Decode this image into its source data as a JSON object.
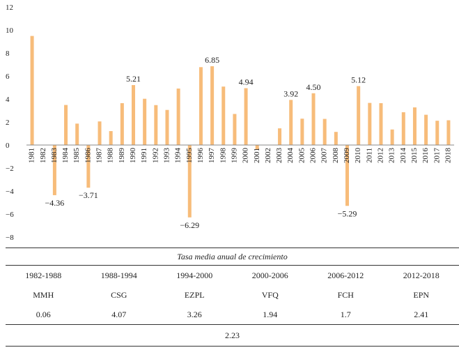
{
  "chart_data": {
    "type": "bar",
    "title": "",
    "xlabel": "",
    "ylabel": "",
    "bar_color": "#F7BC7A",
    "ylim": [
      -8,
      12
    ],
    "yticks": [
      12,
      10,
      8,
      6,
      4,
      2,
      0,
      -2,
      -4,
      -6,
      -8
    ],
    "ytick_labels": [
      "12",
      "10",
      "8",
      "6",
      "4",
      "2",
      "0",
      "−2",
      "−4",
      "−6",
      "−8"
    ],
    "categories": [
      "1981",
      "1982",
      "1983",
      "1984",
      "1985",
      "1986",
      "1987",
      "1988",
      "1989",
      "1990",
      "1991",
      "1992",
      "1993",
      "1994",
      "1995",
      "1996",
      "1997",
      "1998",
      "1999",
      "2000",
      "2001",
      "2002",
      "2003",
      "2004",
      "2005",
      "2006",
      "2007",
      "2008",
      "2009",
      "2010",
      "2011",
      "2012",
      "2013",
      "2014",
      "2015",
      "2016",
      "2017",
      "2018"
    ],
    "values": [
      9.48,
      0.0,
      -4.36,
      3.48,
      1.86,
      -3.71,
      2.05,
      1.21,
      3.64,
      5.21,
      4.02,
      3.47,
      3.05,
      4.91,
      -6.29,
      6.77,
      6.85,
      5.08,
      2.7,
      4.94,
      -0.38,
      0.0,
      1.45,
      3.92,
      2.29,
      4.5,
      2.27,
      1.14,
      -5.29,
      5.12,
      3.66,
      3.64,
      1.35,
      2.85,
      3.27,
      2.63,
      2.11,
      2.15
    ],
    "data_labels": [
      {
        "index": 2,
        "text": "−4.36"
      },
      {
        "index": 5,
        "text": "−3.71"
      },
      {
        "index": 9,
        "text": "5.21"
      },
      {
        "index": 14,
        "text": "−6.29"
      },
      {
        "index": 16,
        "text": "6.85"
      },
      {
        "index": 19,
        "text": "4.94"
      },
      {
        "index": 23,
        "text": "3.92"
      },
      {
        "index": 25,
        "text": "4.50"
      },
      {
        "index": 28,
        "text": "−5.29"
      },
      {
        "index": 29,
        "text": "5.12"
      }
    ]
  },
  "summary": {
    "caption": "Tasa media anual de crecimiento",
    "periods": [
      "1982-1988",
      "1988-1994",
      "1994-2000",
      "2000-2006",
      "2006-2012",
      "2012-2018"
    ],
    "presidents": [
      "MMH",
      "CSG",
      "EZPL",
      "VFQ",
      "FCH",
      "EPN"
    ],
    "rates": [
      "0.06",
      "4.07",
      "3.26",
      "1.94",
      "1.7",
      "2.41"
    ],
    "overall": "2.23"
  }
}
